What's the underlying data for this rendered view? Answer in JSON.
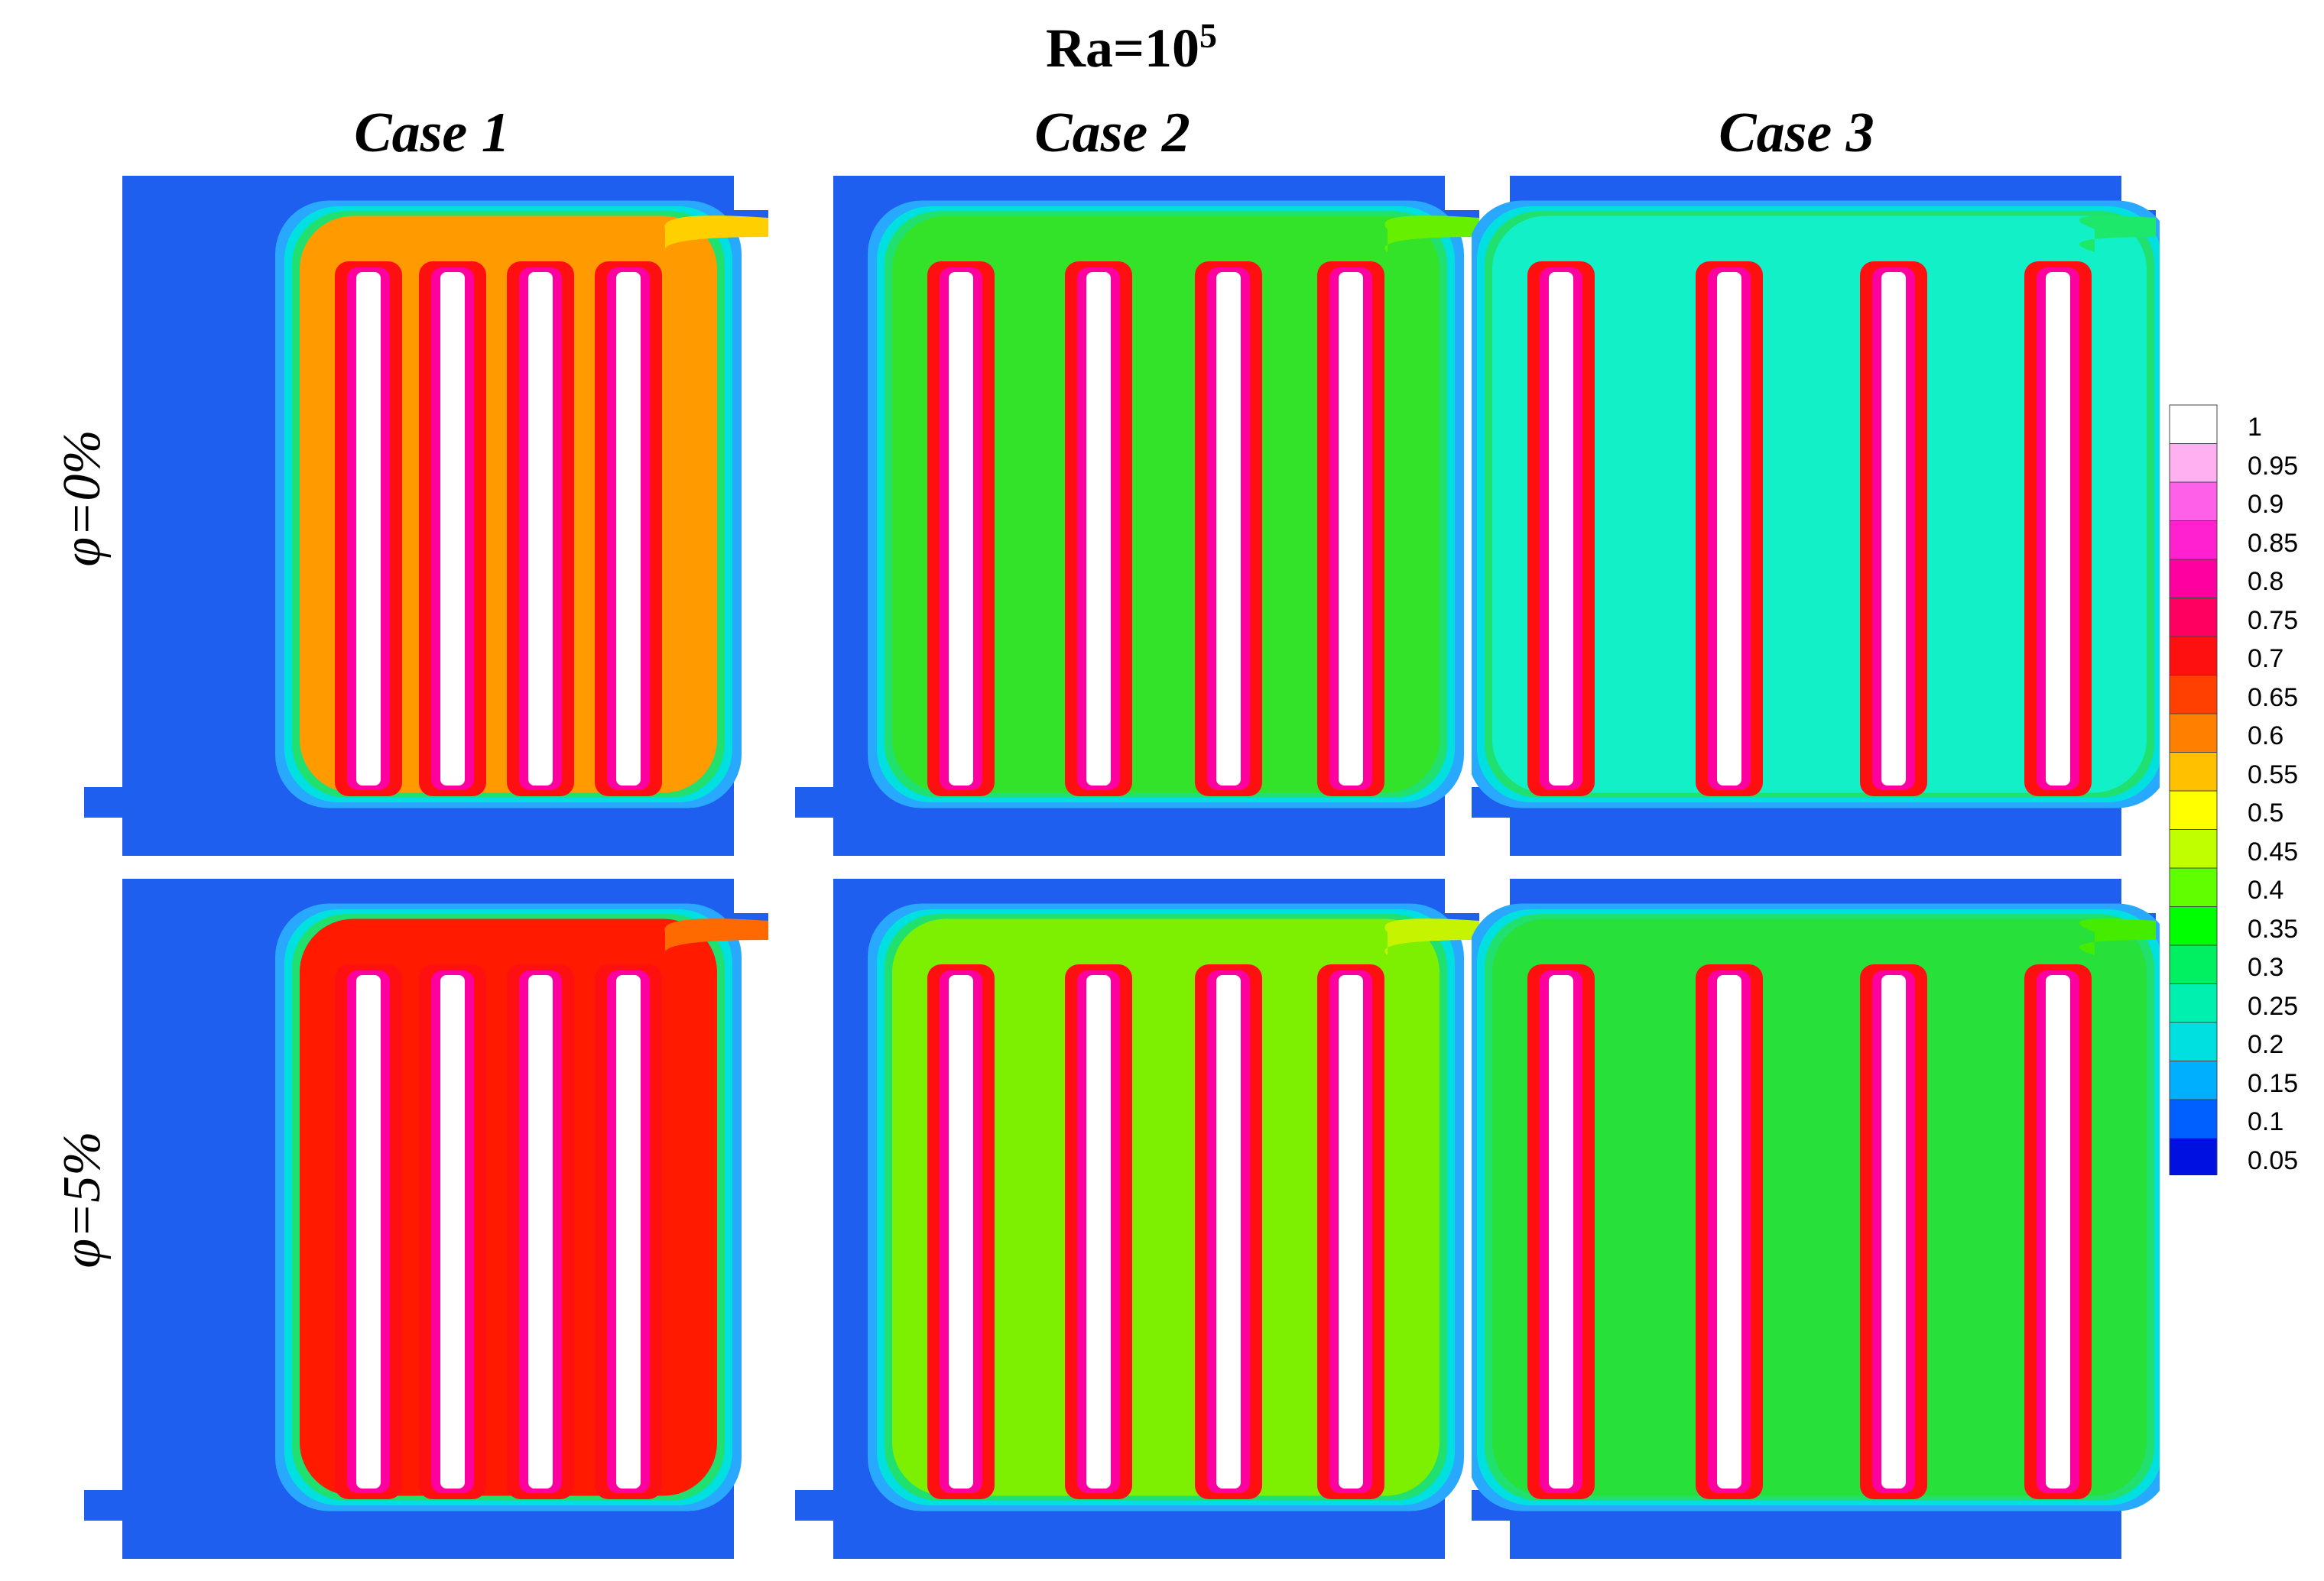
{
  "figure": {
    "title_main": "Ra=10",
    "title_exp": "5",
    "columns": [
      "Case 1",
      "Case 2",
      "Case 3"
    ],
    "rows": [
      "φ=0%",
      "φ=5%"
    ]
  },
  "panels": [
    {
      "case": "Case 1",
      "phi": "φ=0%",
      "fins": 4,
      "fill": "#ff9a00",
      "mid": "#ffd000"
    },
    {
      "case": "Case 2",
      "phi": "φ=0%",
      "fins": 4,
      "fill": "#32e32a",
      "mid": "#66f000"
    },
    {
      "case": "Case 3",
      "phi": "φ=0%",
      "fins": 4,
      "fill": "#12f0c8",
      "mid": "#1ee86a"
    },
    {
      "case": "Case 1",
      "phi": "φ=5%",
      "fins": 4,
      "fill": "#ff1a00",
      "mid": "#ff6a00"
    },
    {
      "case": "Case 2",
      "phi": "φ=5%",
      "fins": 4,
      "fill": "#7cf000",
      "mid": "#c6f400"
    },
    {
      "case": "Case 3",
      "phi": "φ=5%",
      "fins": 4,
      "fill": "#28e03a",
      "mid": "#46ec00"
    }
  ],
  "legend": {
    "levels": [
      "1",
      "0.95",
      "0.9",
      "0.85",
      "0.8",
      "0.75",
      "0.7",
      "0.65",
      "0.6",
      "0.55",
      "0.5",
      "0.45",
      "0.4",
      "0.35",
      "0.3",
      "0.25",
      "0.2",
      "0.15",
      "0.1",
      "0.05"
    ],
    "colors": [
      "#ffffff",
      "#ffb0f0",
      "#ff60e8",
      "#ff20d0",
      "#ff00a0",
      "#ff0060",
      "#ff1010",
      "#ff4000",
      "#ff8000",
      "#ffc000",
      "#ffff00",
      "#c0ff00",
      "#60ff00",
      "#00ff00",
      "#00f060",
      "#00f0b0",
      "#00e0e0",
      "#00b0ff",
      "#0060ff",
      "#0010e0"
    ]
  }
}
